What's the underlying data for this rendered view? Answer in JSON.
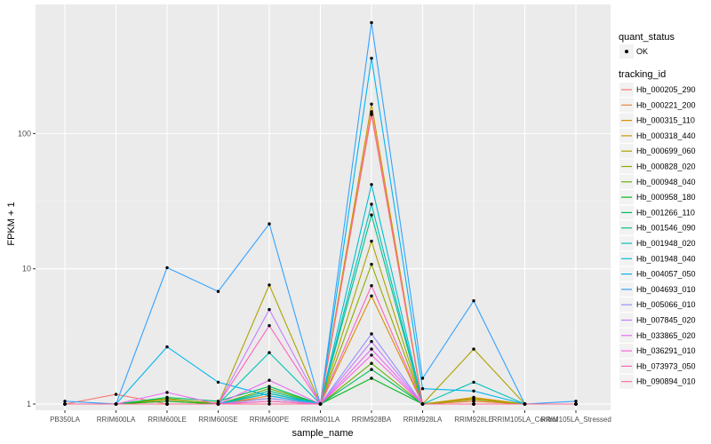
{
  "chart_data": {
    "type": "line",
    "title": "",
    "xlabel": "sample_name",
    "ylabel": "FPKM + 1",
    "yscale": "log10",
    "ylim": [
      0.9,
      900
    ],
    "y_ticks": [
      1,
      10,
      100
    ],
    "y_tick_labels": [
      "1",
      "10",
      "100"
    ],
    "grid": true,
    "legend_position": "right",
    "categories": [
      "PB350LA",
      "RRIM600LA",
      "RRIM600LE",
      "RRIM600SE",
      "RRIM600PE",
      "RRIM901LA",
      "RRIM928BA",
      "RRIM928LA",
      "RRIM928LE",
      "RRIM105LA_Control",
      "RRIM105LA_Stressed"
    ],
    "quant_status_title": "quant_status",
    "quant_status_label": "OK",
    "legend_title": "tracking_id",
    "series": [
      {
        "name": "Hb_000205_290",
        "color": "#F8766D",
        "values": [
          1.0,
          1.18,
          1.0,
          1.0,
          1.2,
          1.0,
          145,
          1.0,
          1.05,
          1.0,
          1.0
        ]
      },
      {
        "name": "Hb_000221_200",
        "color": "#EC8239",
        "values": [
          1.0,
          1.0,
          1.05,
          1.0,
          1.15,
          1.0,
          138,
          1.0,
          1.05,
          1.0,
          1.0
        ]
      },
      {
        "name": "Hb_000315_110",
        "color": "#DB8E00",
        "values": [
          1.0,
          1.0,
          1.08,
          1.02,
          1.1,
          1.0,
          6.3,
          1.0,
          1.1,
          1.0,
          1.0
        ]
      },
      {
        "name": "Hb_000318_440",
        "color": "#C79800",
        "values": [
          1.0,
          1.0,
          1.0,
          1.0,
          1.05,
          1.0,
          165,
          1.0,
          1.12,
          1.0,
          1.0
        ]
      },
      {
        "name": "Hb_000699_060",
        "color": "#AEA200",
        "values": [
          1.0,
          1.0,
          1.0,
          1.0,
          7.6,
          1.0,
          16,
          1.0,
          2.55,
          1.0,
          1.0
        ]
      },
      {
        "name": "Hb_000828_020",
        "color": "#8FAA00",
        "values": [
          1.0,
          1.0,
          1.0,
          1.0,
          1.2,
          1.0,
          10.8,
          1.0,
          1.08,
          1.0,
          1.0
        ]
      },
      {
        "name": "Hb_000948_040",
        "color": "#64B200",
        "values": [
          1.0,
          1.0,
          1.1,
          1.0,
          1.3,
          1.0,
          2.0,
          1.0,
          1.0,
          1.0,
          1.0
        ]
      },
      {
        "name": "Hb_000958_180",
        "color": "#00B81B",
        "values": [
          1.0,
          1.0,
          1.05,
          1.0,
          1.2,
          1.0,
          1.55,
          1.0,
          1.0,
          1.0,
          1.0
        ]
      },
      {
        "name": "Hb_001266_110",
        "color": "#00BD5C",
        "values": [
          1.0,
          1.0,
          1.12,
          1.05,
          1.35,
          1.0,
          1.8,
          1.0,
          1.0,
          1.0,
          1.0
        ]
      },
      {
        "name": "Hb_001546_090",
        "color": "#00C08E",
        "values": [
          1.0,
          1.0,
          1.0,
          1.0,
          1.25,
          1.0,
          25,
          1.0,
          1.0,
          1.0,
          1.0
        ]
      },
      {
        "name": "Hb_001948_020",
        "color": "#00C1B7",
        "values": [
          1.0,
          1.0,
          1.0,
          1.0,
          2.4,
          1.0,
          30,
          1.0,
          1.45,
          1.0,
          1.0
        ]
      },
      {
        "name": "Hb_001948_040",
        "color": "#00BDD4",
        "values": [
          1.0,
          1.0,
          1.0,
          1.0,
          1.2,
          1.0,
          42,
          1.0,
          1.0,
          1.0,
          1.0
        ]
      },
      {
        "name": "Hb_004057_050",
        "color": "#00B5EE",
        "values": [
          1.0,
          1.0,
          2.65,
          1.45,
          1.15,
          1.0,
          360,
          1.3,
          1.25,
          1.0,
          1.0
        ]
      },
      {
        "name": "Hb_004693_010",
        "color": "#35A2FF",
        "values": [
          1.05,
          1.0,
          10.2,
          6.8,
          21.5,
          1.0,
          660,
          1.55,
          5.8,
          1.0,
          1.05
        ]
      },
      {
        "name": "Hb_005066_010",
        "color": "#9590FF",
        "values": [
          1.0,
          1.0,
          1.0,
          1.0,
          1.1,
          1.0,
          3.3,
          1.0,
          1.0,
          1.0,
          1.0
        ]
      },
      {
        "name": "Hb_007845_020",
        "color": "#C77CFF",
        "values": [
          1.0,
          1.0,
          1.0,
          1.0,
          5.0,
          1.0,
          2.9,
          1.0,
          1.0,
          1.0,
          1.0
        ]
      },
      {
        "name": "Hb_033865_020",
        "color": "#E76BF3",
        "values": [
          1.0,
          1.0,
          1.22,
          1.0,
          1.5,
          1.0,
          2.55,
          1.0,
          1.0,
          1.0,
          1.0
        ]
      },
      {
        "name": "Hb_036291_010",
        "color": "#FA62DB",
        "values": [
          1.0,
          1.0,
          1.0,
          1.0,
          1.05,
          1.0,
          2.3,
          1.0,
          1.0,
          1.0,
          1.0
        ]
      },
      {
        "name": "Hb_073973_050",
        "color": "#FF62BC",
        "values": [
          1.0,
          1.0,
          1.0,
          1.0,
          3.8,
          1.0,
          7.5,
          1.0,
          1.0,
          1.0,
          1.0
        ]
      },
      {
        "name": "Hb_090894_010",
        "color": "#FF6C91",
        "values": [
          1.0,
          1.0,
          1.0,
          1.0,
          1.0,
          1.0,
          140,
          1.0,
          1.0,
          1.0,
          1.0
        ]
      }
    ]
  }
}
